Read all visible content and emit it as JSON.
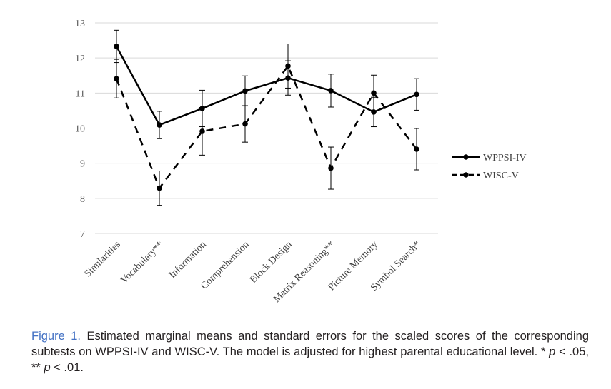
{
  "chart_data": {
    "type": "line",
    "categories": [
      "Similarities",
      "Vocabulary**",
      "Information",
      "Comprehension",
      "Block Design",
      "Matrix Reasoning**",
      "Picture Memory",
      "Symbol Search*"
    ],
    "ylim": [
      7,
      13
    ],
    "yticks": [
      "7",
      "8",
      "9",
      "10",
      "11",
      "12",
      "13"
    ],
    "grid": true,
    "legend_position": "right",
    "series": [
      {
        "name": "WPPSI-IV",
        "style": "solid",
        "color": "#000000",
        "values": [
          12.33,
          10.09,
          10.56,
          11.06,
          11.43,
          11.07,
          10.46,
          10.96
        ],
        "errors": [
          0.46,
          0.39,
          0.52,
          0.43,
          0.49,
          0.47,
          0.42,
          0.45
        ]
      },
      {
        "name": "WISC-V",
        "style": "dashed",
        "color": "#000000",
        "values": [
          11.41,
          8.29,
          9.91,
          10.12,
          11.77,
          8.86,
          11.0,
          9.4
        ],
        "errors": [
          0.55,
          0.49,
          0.68,
          0.52,
          0.63,
          0.6,
          0.51,
          0.59
        ]
      }
    ]
  },
  "caption": {
    "label": "Figure 1.",
    "text_part1": " Estimated marginal means and standard errors for the scaled scores of the corresponding subtests on WPPSI-IV and WISC-V. The model is adjusted for highest parental educational level. * ",
    "p1": "p",
    "text_part2": " < .05, ** ",
    "p2": "p",
    "text_part3": " < .01."
  }
}
